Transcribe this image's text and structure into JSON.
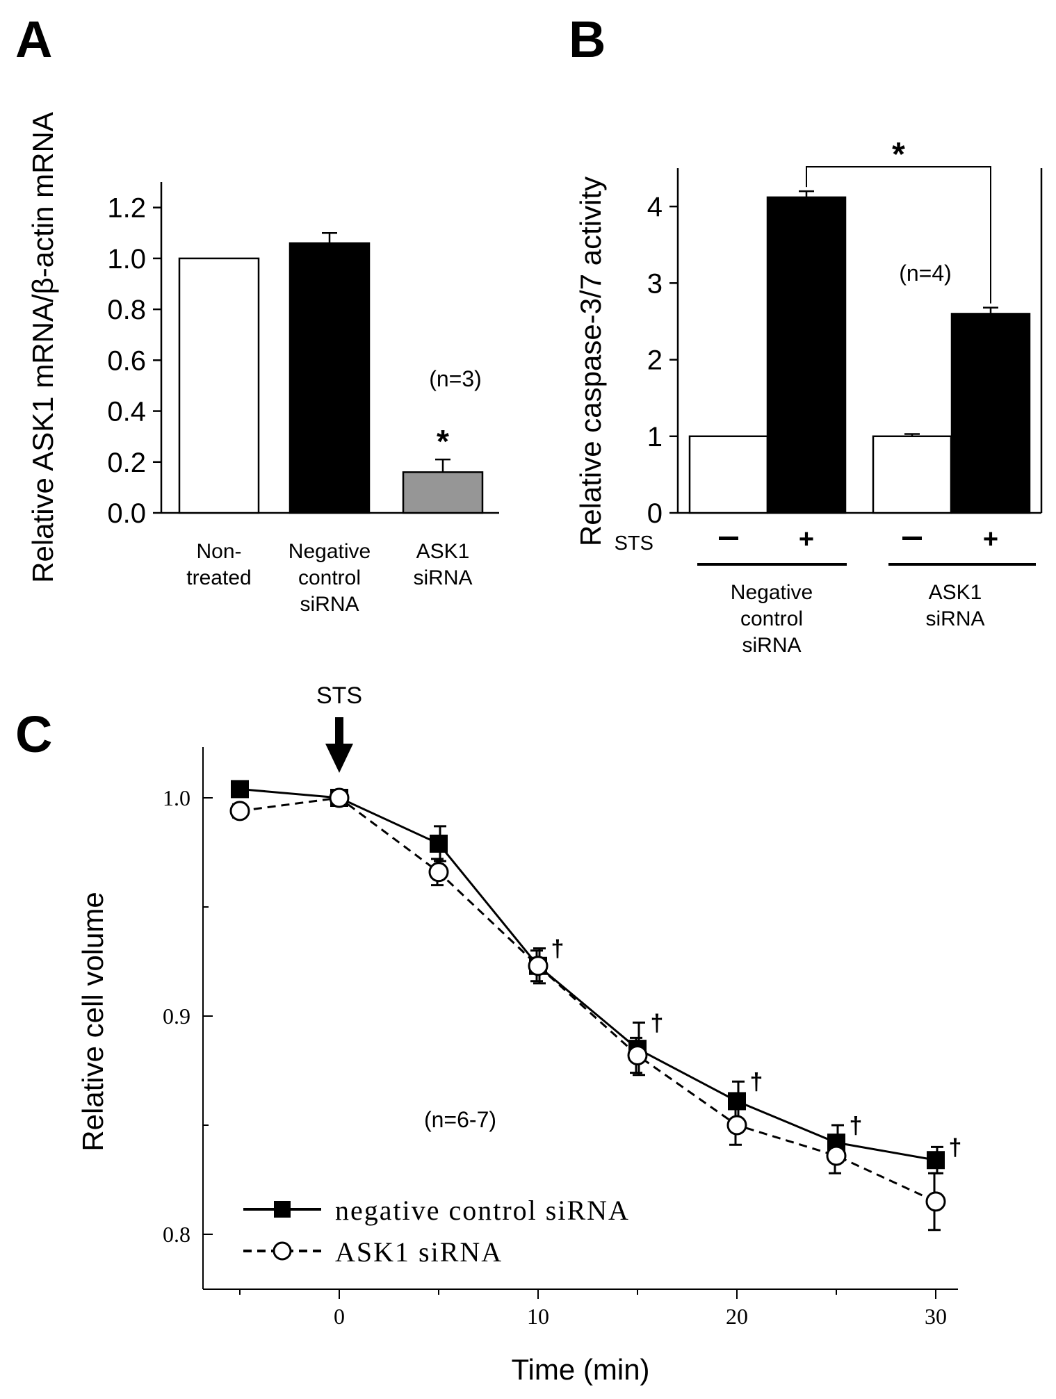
{
  "chart_data": [
    {
      "panel": "A",
      "type": "bar",
      "ylabel": "Relative ASK1 mRNA/β-actin mRNA",
      "ylim": [
        0,
        1.3
      ],
      "yticks": [
        "0.0",
        "0.2",
        "0.4",
        "0.6",
        "0.8",
        "1.0",
        "1.2"
      ],
      "categories": [
        [
          "Non-",
          "treated"
        ],
        [
          "Negative",
          "control",
          "siRNA"
        ],
        [
          "ASK1",
          "siRNA"
        ]
      ],
      "values": [
        1.0,
        1.06,
        0.16
      ],
      "errors": [
        0.0,
        0.04,
        0.05
      ],
      "colors": [
        "#ffffff",
        "#000000",
        "#969696"
      ],
      "annotations": {
        "n": "(n=3)",
        "significance": "*"
      }
    },
    {
      "panel": "B",
      "type": "bar",
      "ylabel": "Relative caspase-3/7 activity",
      "ylim": [
        0,
        4.5
      ],
      "yticks": [
        "0",
        "1",
        "2",
        "3",
        "4"
      ],
      "treatment_label": "STS",
      "treatment": [
        "-",
        "+",
        "-",
        "+"
      ],
      "groups": [
        [
          "Negative",
          "control",
          "siRNA"
        ],
        [
          "ASK1",
          "siRNA"
        ]
      ],
      "values": [
        1.0,
        4.12,
        1.0,
        2.6
      ],
      "errors": [
        0.0,
        0.08,
        0.03,
        0.08
      ],
      "colors": [
        "#ffffff",
        "#000000",
        "#ffffff",
        "#000000"
      ],
      "annotations": {
        "n": "(n=4)",
        "significance": "*"
      }
    },
    {
      "panel": "C",
      "type": "line",
      "xlabel": "Time (min)",
      "ylabel": "Relative cell volume",
      "xlim": [
        -7,
        31
      ],
      "ylim": [
        0.775,
        1.025
      ],
      "xticks": [
        "0",
        "10",
        "20",
        "30"
      ],
      "yticks": [
        "0.8",
        "0.9",
        "1.0"
      ],
      "arrow_label": "STS",
      "arrow_at": 0,
      "x": [
        -5,
        0,
        5,
        10,
        15,
        20,
        25,
        30
      ],
      "series": [
        {
          "name": "negative control siRNA",
          "legend_text": "negative control siRNA",
          "values": [
            1.004,
            1.0,
            0.979,
            0.923,
            0.885,
            0.861,
            0.842,
            0.834
          ],
          "errors": [
            0.003,
            0.0,
            0.008,
            0.008,
            0.012,
            0.009,
            0.008,
            0.006
          ],
          "marker": "filled-square",
          "line": "solid"
        },
        {
          "name": "ASK1 siRNA",
          "legend_text": "ASK1 siRNA",
          "values": [
            0.994,
            1.0,
            0.966,
            0.923,
            0.882,
            0.85,
            0.836,
            0.815
          ],
          "errors": [
            0.003,
            0.0,
            0.006,
            0.007,
            0.008,
            0.009,
            0.008,
            0.013
          ],
          "marker": "open-circle",
          "line": "dashed"
        }
      ],
      "daggers_at": [
        10,
        15,
        20,
        25,
        30
      ],
      "dagger_symbol": "†",
      "annotations": {
        "n": "(n=6-7)"
      }
    }
  ],
  "panel_labels": [
    "A",
    "B",
    "C"
  ]
}
